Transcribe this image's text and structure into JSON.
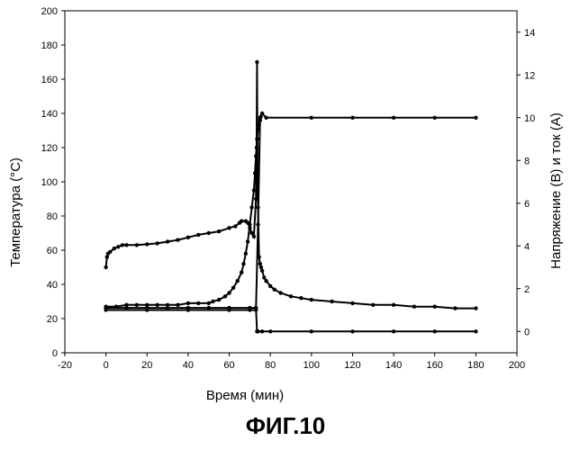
{
  "figure_label": "ФИГ.10",
  "chart_data": {
    "type": "scatter",
    "xlabel": "Время (мин)",
    "ylabel_left": "Температура (°C)",
    "ylabel_right": "Напряжение (В) и ток (А)",
    "xlim": [
      -20,
      200
    ],
    "ylim_left": [
      0,
      200
    ],
    "ylim_right": [
      -1,
      15
    ],
    "x_ticks": [
      -20,
      0,
      20,
      40,
      60,
      80,
      100,
      120,
      140,
      160,
      180,
      200
    ],
    "y_ticks_left": [
      0,
      20,
      40,
      60,
      80,
      100,
      120,
      140,
      160,
      180,
      200
    ],
    "y_ticks_right": [
      0,
      2,
      4,
      6,
      8,
      10,
      12,
      14
    ],
    "grid": false,
    "series": [
      {
        "axis": "left",
        "color": "#000000",
        "points": [
          [
            0,
            50
          ],
          [
            0.5,
            56
          ],
          [
            1,
            58
          ],
          [
            2,
            59
          ],
          [
            4,
            61
          ],
          [
            6,
            62
          ],
          [
            8,
            63
          ],
          [
            10,
            63
          ],
          [
            15,
            63
          ],
          [
            20,
            63.5
          ],
          [
            25,
            64
          ],
          [
            30,
            65
          ],
          [
            35,
            66
          ],
          [
            40,
            67.5
          ],
          [
            45,
            69
          ],
          [
            50,
            70
          ],
          [
            55,
            71
          ],
          [
            60,
            73
          ],
          [
            63,
            74
          ],
          [
            65,
            76
          ],
          [
            66,
            77
          ],
          [
            68,
            77
          ],
          [
            69,
            76
          ],
          [
            70,
            73
          ],
          [
            71,
            70
          ],
          [
            72,
            68
          ],
          [
            73,
            90
          ],
          [
            73.3,
            120
          ],
          [
            73.5,
            170
          ],
          [
            73.8,
            100
          ],
          [
            74,
            85
          ],
          [
            74.5,
            56
          ],
          [
            75,
            52
          ],
          [
            75.5,
            50
          ],
          [
            76,
            48
          ],
          [
            77,
            44
          ],
          [
            78,
            42
          ],
          [
            80,
            39
          ],
          [
            82,
            37
          ],
          [
            85,
            35
          ],
          [
            90,
            33
          ],
          [
            95,
            32
          ],
          [
            100,
            31
          ],
          [
            110,
            30
          ],
          [
            120,
            29
          ],
          [
            130,
            28
          ],
          [
            140,
            28
          ],
          [
            150,
            27
          ],
          [
            160,
            27
          ],
          [
            170,
            26
          ],
          [
            180,
            26
          ]
        ]
      },
      {
        "axis": "left",
        "color": "#000000",
        "points": [
          [
            0,
            27
          ],
          [
            5,
            27
          ],
          [
            10,
            28
          ],
          [
            15,
            28
          ],
          [
            20,
            28
          ],
          [
            25,
            28
          ],
          [
            30,
            28
          ],
          [
            35,
            28
          ],
          [
            40,
            29
          ],
          [
            45,
            29
          ],
          [
            50,
            29
          ],
          [
            52,
            30
          ],
          [
            55,
            31
          ],
          [
            58,
            33
          ],
          [
            60,
            35
          ],
          [
            62,
            38
          ],
          [
            64,
            42
          ],
          [
            66,
            47
          ],
          [
            67,
            52
          ],
          [
            68,
            58
          ],
          [
            69,
            65
          ],
          [
            70,
            75
          ],
          [
            71,
            85
          ],
          [
            72,
            95
          ],
          [
            72.5,
            105
          ],
          [
            73,
            115
          ],
          [
            73.5,
            125
          ],
          [
            74,
            131
          ],
          [
            74.5,
            134
          ],
          [
            75,
            136
          ],
          [
            75.3,
            138
          ]
        ]
      },
      {
        "axis": "right",
        "color": "#000000",
        "points": [
          [
            0,
            1.1
          ],
          [
            10,
            1.1
          ],
          [
            20,
            1.1
          ],
          [
            30,
            1.1
          ],
          [
            40,
            1.1
          ],
          [
            50,
            1.1
          ],
          [
            60,
            1.1
          ],
          [
            70,
            1.1
          ],
          [
            73,
            1.1
          ],
          [
            73.5,
            0
          ],
          [
            74,
            0
          ],
          [
            76,
            0
          ],
          [
            80,
            0
          ],
          [
            100,
            0
          ],
          [
            120,
            0
          ],
          [
            140,
            0
          ],
          [
            160,
            0
          ],
          [
            180,
            0
          ]
        ]
      },
      {
        "axis": "right",
        "color": "#000000",
        "points": [
          [
            0,
            1.0
          ],
          [
            20,
            1.0
          ],
          [
            40,
            1.0
          ],
          [
            60,
            1.0
          ],
          [
            70,
            1.0
          ],
          [
            73,
            1.0
          ],
          [
            74,
            5
          ],
          [
            75,
            10
          ],
          [
            76,
            10.2
          ],
          [
            78,
            10
          ],
          [
            100,
            10
          ],
          [
            120,
            10
          ],
          [
            140,
            10
          ],
          [
            160,
            10
          ],
          [
            180,
            10
          ]
        ]
      }
    ]
  }
}
